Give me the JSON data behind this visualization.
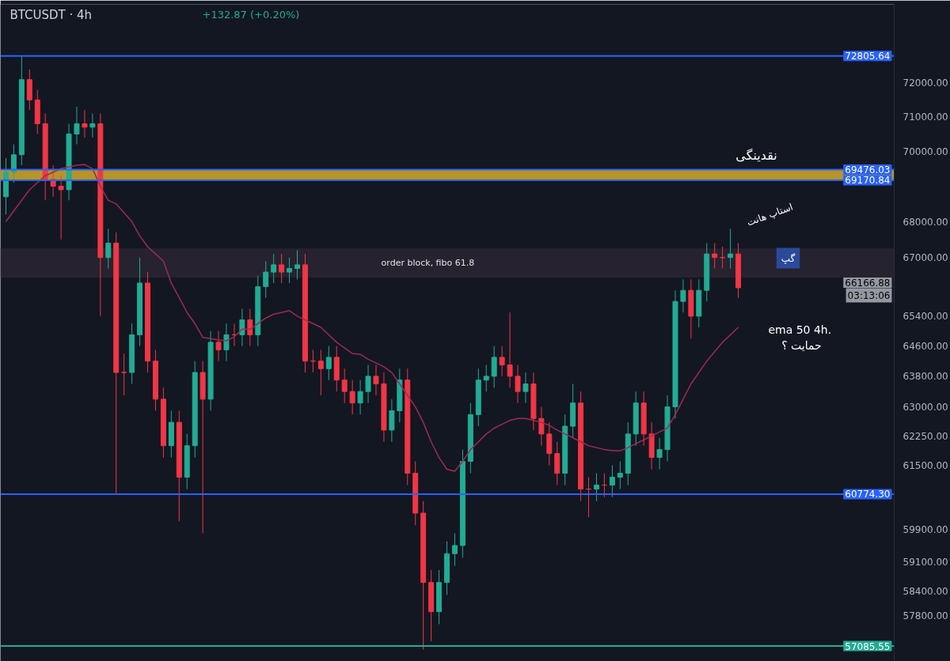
{
  "chart_data": {
    "type": "candlestick",
    "title": "BTCUSDT · 4h",
    "subtitle": "+132.87 (+0.20%)",
    "categories": [
      null,
      null,
      null,
      null,
      null,
      null,
      null,
      null,
      null,
      null,
      null,
      null,
      null,
      null,
      null,
      null,
      null,
      null,
      null,
      null,
      null,
      null,
      null,
      null,
      null,
      null,
      null,
      null,
      null,
      null,
      null,
      null,
      null,
      null,
      null,
      null,
      null,
      null,
      null,
      null,
      null,
      null,
      null,
      null,
      null,
      null,
      null,
      null,
      null,
      null,
      null,
      null,
      null,
      null,
      null,
      null,
      null,
      null,
      null,
      null,
      null,
      null,
      null,
      null,
      null,
      null,
      null,
      null,
      null,
      null,
      null,
      null,
      null,
      null,
      null,
      null,
      null,
      null,
      null,
      null,
      null,
      null,
      null,
      null,
      null,
      null,
      null,
      null,
      null,
      null,
      null,
      null,
      null,
      null
    ],
    "ohlc": [
      [
        68700,
        69800,
        68200,
        69400
      ],
      [
        69400,
        70200,
        69100,
        69900
      ],
      [
        69900,
        72800,
        69600,
        72100
      ],
      [
        72100,
        72400,
        71200,
        71500
      ],
      [
        71500,
        71800,
        70500,
        70800
      ],
      [
        70800,
        71100,
        68600,
        69200
      ],
      [
        69200,
        69600,
        68700,
        69000
      ],
      [
        69000,
        69300,
        67500,
        68900
      ],
      [
        68900,
        70800,
        68600,
        70500
      ],
      [
        70500,
        71300,
        70200,
        70800
      ],
      [
        70800,
        71200,
        70400,
        70700
      ],
      [
        70700,
        71100,
        70400,
        70800
      ],
      [
        70800,
        71100,
        65400,
        67000
      ],
      [
        67000,
        67800,
        66700,
        67400
      ],
      [
        67400,
        67700,
        60800,
        63900
      ],
      [
        63900,
        64400,
        63300,
        63900
      ],
      [
        63900,
        65200,
        63600,
        64900
      ],
      [
        64900,
        67000,
        64600,
        66300
      ],
      [
        66300,
        66600,
        63900,
        64200
      ],
      [
        64200,
        64500,
        62900,
        63200
      ],
      [
        63200,
        63500,
        61700,
        62000
      ],
      [
        62000,
        62900,
        61700,
        62600
      ],
      [
        62600,
        62900,
        60100,
        61200
      ],
      [
        61200,
        62300,
        60900,
        62000
      ],
      [
        62000,
        64200,
        61700,
        63900
      ],
      [
        63900,
        64200,
        59800,
        63200
      ],
      [
        63200,
        65000,
        62900,
        64700
      ],
      [
        64700,
        65000,
        64200,
        64500
      ],
      [
        64500,
        65200,
        64200,
        64900
      ],
      [
        64900,
        65200,
        64600,
        64900
      ],
      [
        64900,
        65600,
        64600,
        65300
      ],
      [
        65300,
        65600,
        64600,
        64900
      ],
      [
        64900,
        66500,
        64600,
        66200
      ],
      [
        66200,
        66900,
        65900,
        66600
      ],
      [
        66600,
        67100,
        66300,
        66800
      ],
      [
        66800,
        67100,
        66300,
        66600
      ],
      [
        66600,
        67000,
        66300,
        66700
      ],
      [
        66700,
        67200,
        66400,
        66800
      ],
      [
        66800,
        67100,
        63900,
        64200
      ],
      [
        64200,
        64500,
        63900,
        64200
      ],
      [
        64200,
        64500,
        63300,
        64000
      ],
      [
        64000,
        64600,
        63700,
        64300
      ],
      [
        64300,
        64600,
        63400,
        63700
      ],
      [
        63700,
        64000,
        63100,
        63400
      ],
      [
        63400,
        63700,
        62800,
        63100
      ],
      [
        63100,
        63700,
        62800,
        63400
      ],
      [
        63400,
        64100,
        63100,
        63800
      ],
      [
        63800,
        64100,
        63300,
        63600
      ],
      [
        63600,
        63900,
        62100,
        62400
      ],
      [
        62400,
        63200,
        62100,
        62900
      ],
      [
        62900,
        64000,
        62600,
        63700
      ],
      [
        63700,
        64000,
        61000,
        61300
      ],
      [
        61300,
        61600,
        60000,
        60300
      ],
      [
        60300,
        60600,
        57000,
        58600
      ],
      [
        58600,
        58900,
        57200,
        57900
      ],
      [
        57900,
        58900,
        57600,
        58600
      ],
      [
        58600,
        59600,
        58300,
        59300
      ],
      [
        59300,
        59800,
        59000,
        59500
      ],
      [
        59500,
        61900,
        59200,
        61600
      ],
      [
        61600,
        63100,
        61300,
        62800
      ],
      [
        62800,
        64000,
        62500,
        63700
      ],
      [
        63700,
        64100,
        63400,
        63800
      ],
      [
        63800,
        64600,
        63500,
        64300
      ],
      [
        64300,
        64600,
        63800,
        64100
      ],
      [
        64100,
        65500,
        63500,
        63800
      ],
      [
        63800,
        64100,
        63100,
        63400
      ],
      [
        63400,
        63900,
        63100,
        63600
      ],
      [
        63600,
        63900,
        62400,
        62700
      ],
      [
        62700,
        63000,
        62000,
        62300
      ],
      [
        62300,
        62600,
        61500,
        61800
      ],
      [
        61800,
        62100,
        61000,
        61300
      ],
      [
        61300,
        62800,
        61000,
        62500
      ],
      [
        62500,
        63600,
        62200,
        63100
      ],
      [
        63100,
        63400,
        60600,
        60900
      ],
      [
        60900,
        61200,
        60200,
        60900
      ],
      [
        60900,
        61300,
        60600,
        61000
      ],
      [
        61000,
        61300,
        60700,
        61000
      ],
      [
        61000,
        61500,
        60700,
        61200
      ],
      [
        61200,
        61600,
        60900,
        61300
      ],
      [
        61300,
        62600,
        61000,
        62300
      ],
      [
        62300,
        63400,
        62000,
        63100
      ],
      [
        63100,
        63400,
        62000,
        62300
      ],
      [
        62300,
        62600,
        61400,
        61700
      ],
      [
        61700,
        62200,
        61400,
        61900
      ],
      [
        61900,
        63300,
        61600,
        63000
      ],
      [
        63000,
        66100,
        62700,
        65800
      ],
      [
        65800,
        66400,
        65500,
        66100
      ],
      [
        66100,
        66400,
        64800,
        65400
      ],
      [
        65400,
        66400,
        65100,
        66100
      ],
      [
        66100,
        67400,
        65800,
        67100
      ],
      [
        67100,
        67400,
        66700,
        67000
      ],
      [
        67000,
        67300,
        66700,
        67000
      ],
      [
        67000,
        67800,
        66700,
        67100
      ],
      [
        67100,
        67400,
        65900,
        66170
      ]
    ],
    "colors": [
      "#22ab94",
      "#22ab94",
      "#22ab94",
      "#f23645",
      "#f23645",
      "#f23645",
      "#f23645",
      "#f23645",
      "#22ab94",
      "#22ab94",
      "#f23645",
      "#22ab94",
      "#f23645",
      "#22ab94",
      "#f23645",
      "#f23645",
      "#22ab94",
      "#22ab94",
      "#f23645",
      "#f23645",
      "#f23645",
      "#22ab94",
      "#f23645",
      "#22ab94",
      "#22ab94",
      "#f23645",
      "#22ab94",
      "#f23645",
      "#22ab94",
      "#f23645",
      "#22ab94",
      "#f23645",
      "#22ab94",
      "#22ab94",
      "#22ab94",
      "#f23645",
      "#22ab94",
      "#22ab94",
      "#f23645",
      "#f23645",
      "#f23645",
      "#22ab94",
      "#f23645",
      "#f23645",
      "#f23645",
      "#22ab94",
      "#22ab94",
      "#f23645",
      "#f23645",
      "#22ab94",
      "#22ab94",
      "#f23645",
      "#f23645",
      "#f23645",
      "#f23645",
      "#22ab94",
      "#22ab94",
      "#22ab94",
      "#22ab94",
      "#22ab94",
      "#22ab94",
      "#22ab94",
      "#22ab94",
      "#f23645",
      "#f23645",
      "#f23645",
      "#22ab94",
      "#f23645",
      "#f23645",
      "#f23645",
      "#f23645",
      "#22ab94",
      "#22ab94",
      "#f23645",
      "#f23645",
      "#22ab94",
      "#f23645",
      "#22ab94",
      "#22ab94",
      "#22ab94",
      "#22ab94",
      "#f23645",
      "#f23645",
      "#22ab94",
      "#22ab94",
      "#22ab94",
      "#22ab94",
      "#f23645",
      "#22ab94",
      "#22ab94",
      "#f23645",
      "#f23645",
      "#22ab94",
      "#f23645"
    ],
    "series": [
      {
        "type": "line",
        "color": "#9c2b55",
        "values": [
          68000,
          68300,
          68600,
          68900,
          69100,
          69300,
          69400,
          69500,
          69550,
          69600,
          69620,
          69500,
          69000,
          68600,
          68500,
          68250,
          68000,
          67600,
          67300,
          67100,
          66900,
          66300,
          65900,
          65500,
          65200,
          64830,
          64800,
          64760,
          64740,
          64850,
          65050,
          65050,
          65200,
          65350,
          65450,
          65500,
          65550,
          65400,
          65300,
          65200,
          65100,
          64900,
          64700,
          64550,
          64400,
          64380,
          64250,
          64150,
          64050,
          63900,
          63600,
          63300,
          63000,
          62600,
          62100,
          61700,
          61400,
          61350,
          61600,
          61900,
          62100,
          62300,
          62450,
          62550,
          62650,
          62700,
          62700,
          62650,
          62600,
          62520,
          62400,
          62300,
          62200,
          62100,
          62000,
          61950,
          61900,
          61870,
          61870,
          61950,
          62050,
          62150,
          62250,
          62350,
          62450,
          62800,
          63200,
          63600,
          63900,
          64200,
          64450,
          64700,
          64900,
          65100
        ]
      }
    ],
    "ylim": [
      56724,
      74372
    ],
    "log": true,
    "yticks": [
      {
        "value": 72000,
        "label": "72000.00"
      },
      {
        "value": 71000,
        "label": "71000.00"
      },
      {
        "value": 70000,
        "label": "70000.00"
      },
      {
        "value": 68000,
        "label": "68000.00"
      },
      {
        "value": 67000,
        "label": "67000.00"
      },
      {
        "value": 65400,
        "label": "65400.00"
      },
      {
        "value": 64600,
        "label": "64600.00"
      },
      {
        "value": 63800,
        "label": "63800.00"
      },
      {
        "value": 63000,
        "label": "63000.00"
      },
      {
        "value": 62250,
        "label": "62250.00"
      },
      {
        "value": 61500,
        "label": "61500.00"
      },
      {
        "value": 59900,
        "label": "59900.00"
      },
      {
        "value": 59100,
        "label": "59100.00"
      },
      {
        "value": 58400,
        "label": "58400.00"
      },
      {
        "value": 57800,
        "label": "57800.00"
      }
    ],
    "tick_labels": "y",
    "grid": false,
    "ref_lines": [
      {
        "axis": "y",
        "value": 72805.64,
        "label": "72805.64",
        "color": "#2962ff"
      },
      {
        "axis": "y",
        "value": 69476.03,
        "label": "69476.03",
        "color": "#2962ff"
      },
      {
        "axis": "y",
        "value": 69170.84,
        "label": "69170.84",
        "color": "#2962ff"
      },
      {
        "axis": "y",
        "value": 60774.3,
        "label": "60774.30",
        "color": "#2962ff"
      },
      {
        "axis": "y",
        "value": 57085.55,
        "label": "57085.55",
        "color": "#22ab94"
      }
    ],
    "bands": [
      {
        "axis": "y",
        "from": 69170.84,
        "to": 69476.03,
        "label": null,
        "color": "#c9a227"
      },
      {
        "axis": "y",
        "from": 66450,
        "to": 67250,
        "label": "order block, fibo 61.8",
        "color": "#2a2331"
      }
    ],
    "annotations": [
      "نقدینگی",
      "استاپ هانت",
      "گپ",
      "ema 50  4h.",
      "حمایت ؟",
      "66166.88",
      "03:13:06"
    ]
  }
}
